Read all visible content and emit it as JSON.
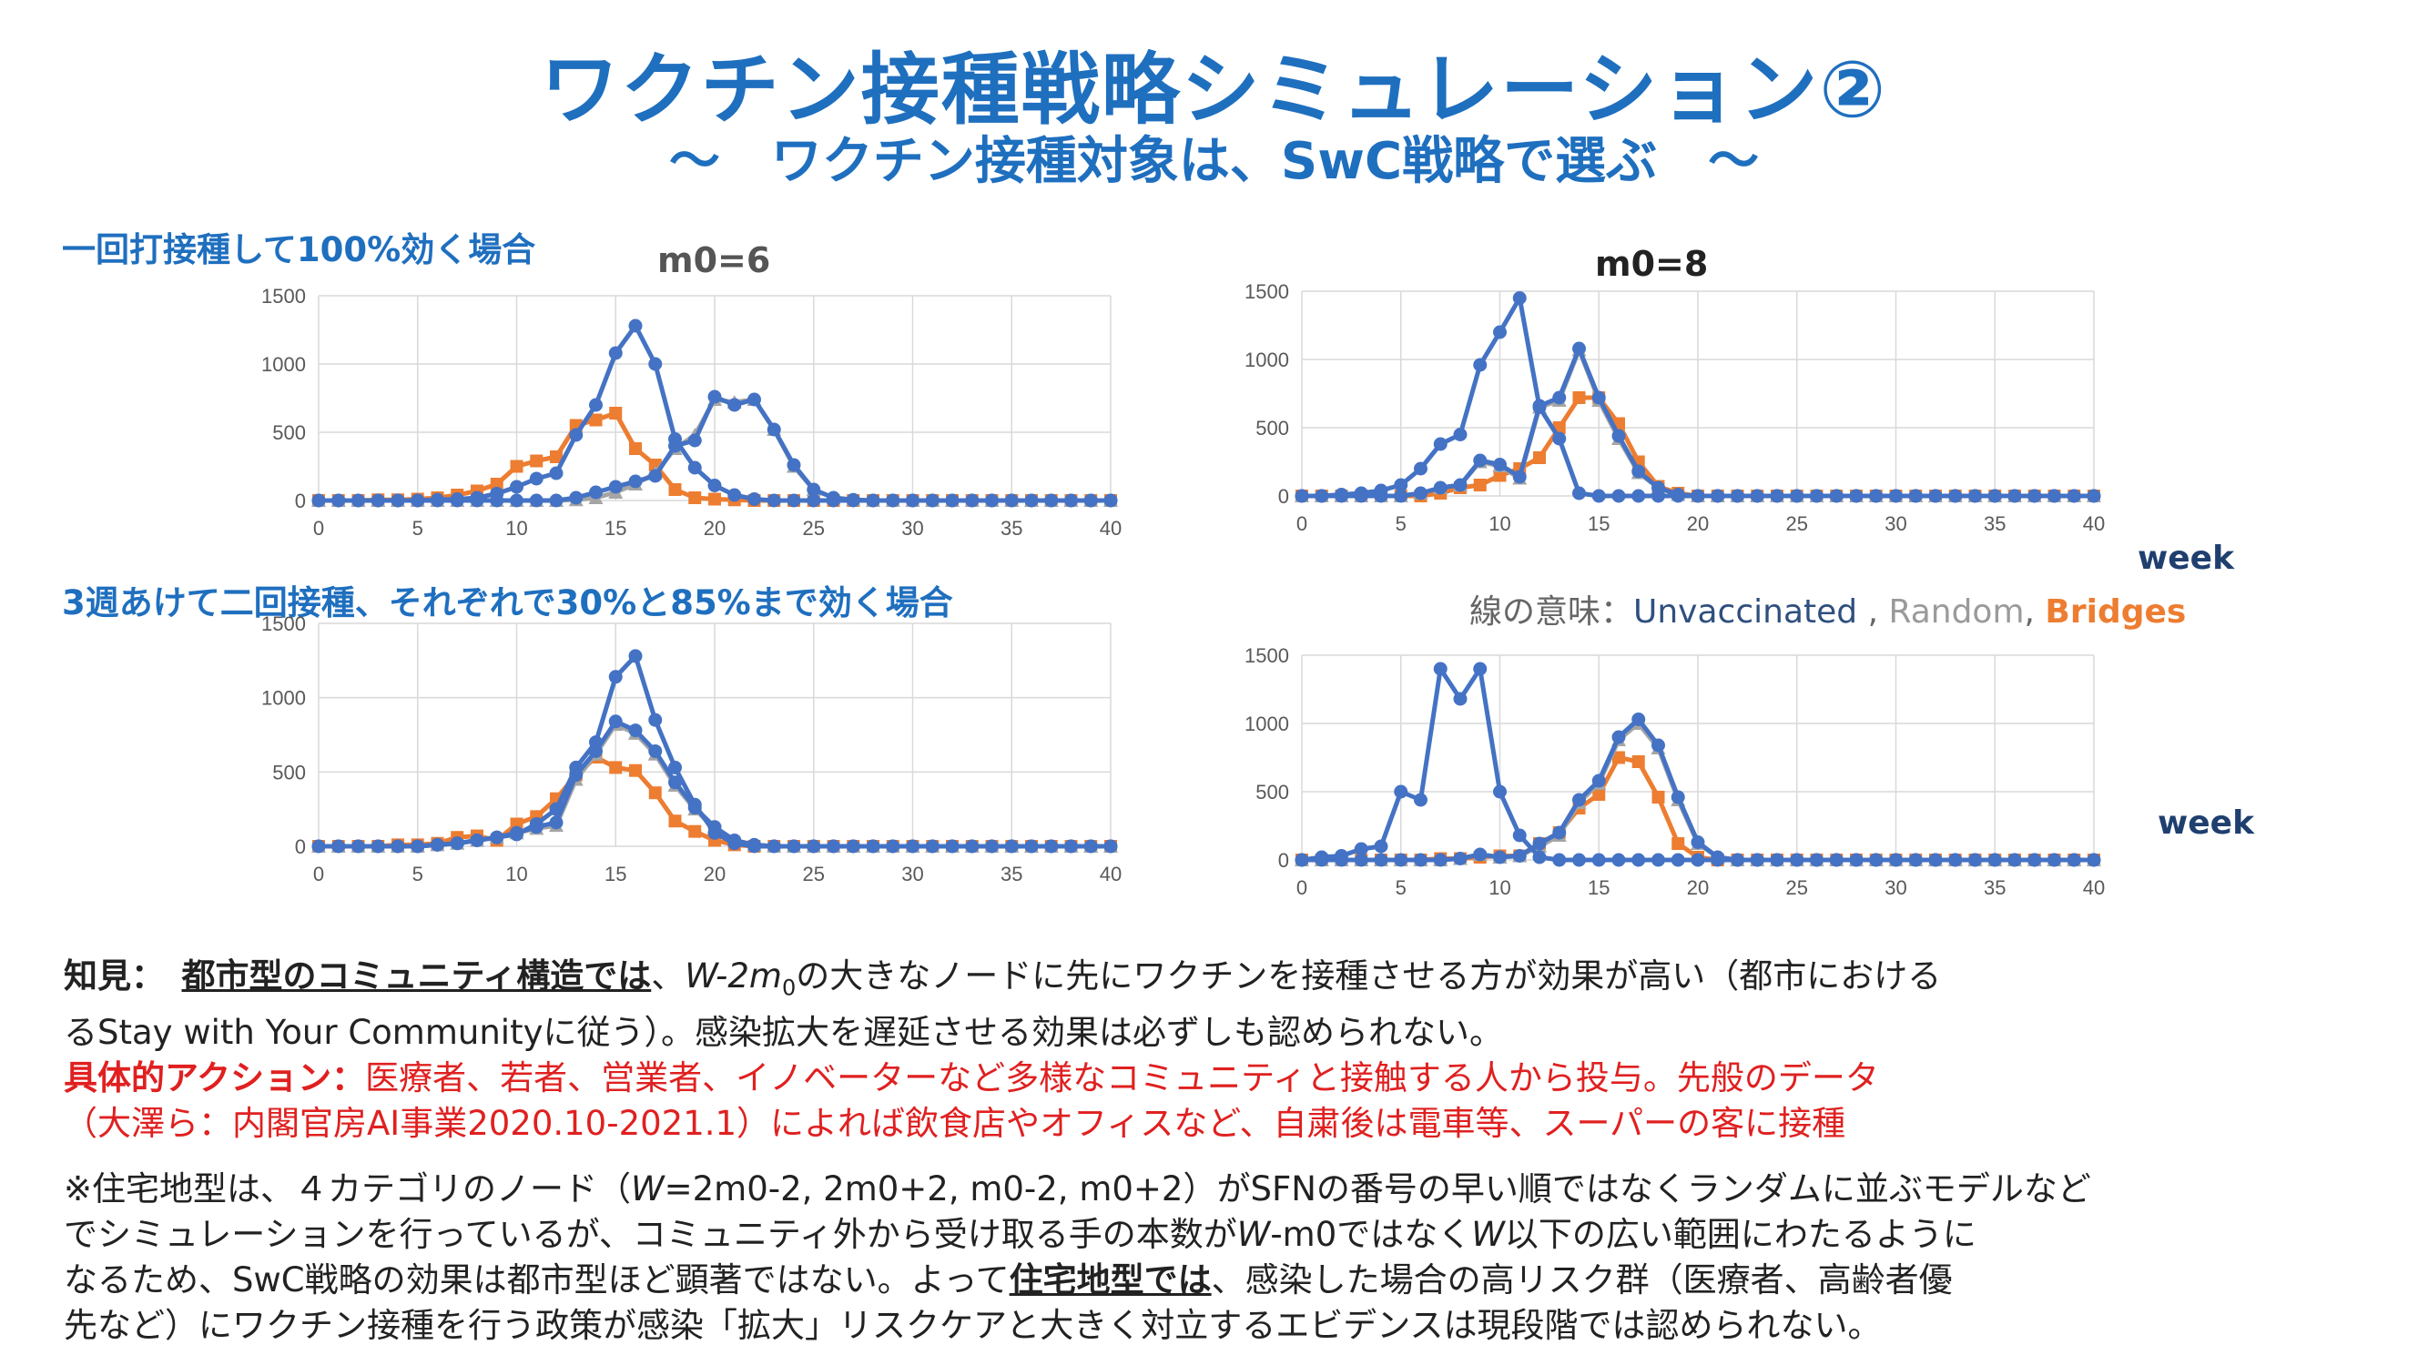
{
  "header": {
    "title": "ワクチン接種戦略シミュレーション②",
    "subtitle": "～　ワクチン接種対象は、SwC戦略で選ぶ　～"
  },
  "sections": {
    "row1_label": "一回打接種して100%効く場合",
    "row2_label": "3週あけて二回接種、それぞれで30%と85%まで効く場合"
  },
  "week_label": "week",
  "legend": {
    "prefix": "線の意味：",
    "unvaccinated": "Unvaccinated",
    "sep1": " , ",
    "random": "Random",
    "sep2": ", ",
    "bridges": "Bridges"
  },
  "colors": {
    "unvaccinated": "#4472c4",
    "random": "#a5a5a5",
    "bridges": "#ed7d31"
  },
  "chart_data": [
    {
      "type": "line",
      "title": "m0=6",
      "xlim": [
        0,
        40
      ],
      "xticks": [
        0,
        5,
        10,
        15,
        20,
        25,
        30,
        35,
        40
      ],
      "ylim": [
        0,
        1500
      ],
      "yticks": [
        0,
        500,
        1000,
        1500
      ],
      "x": [
        0,
        1,
        2,
        3,
        4,
        5,
        6,
        7,
        8,
        9,
        10,
        11,
        12,
        13,
        14,
        15,
        16,
        17,
        18,
        19,
        20,
        21,
        22,
        23,
        24,
        25,
        26,
        27,
        28,
        29,
        30,
        31,
        32,
        33,
        34,
        35,
        36,
        37,
        38,
        39,
        40
      ],
      "series": [
        {
          "name": "Bridges",
          "values": [
            0,
            0,
            0,
            5,
            5,
            10,
            20,
            40,
            70,
            120,
            250,
            290,
            320,
            550,
            590,
            640,
            380,
            260,
            80,
            20,
            10,
            5,
            0,
            0,
            0,
            0,
            0,
            0,
            0,
            0,
            0,
            0,
            0,
            0,
            0,
            0,
            0,
            0,
            0,
            0,
            0
          ]
        },
        {
          "name": "Random",
          "values": [
            0,
            0,
            0,
            0,
            0,
            0,
            0,
            0,
            0,
            0,
            0,
            0,
            0,
            5,
            20,
            60,
            120,
            200,
            380,
            480,
            740,
            720,
            740,
            520,
            250,
            80,
            20,
            5,
            0,
            0,
            0,
            0,
            0,
            0,
            0,
            0,
            0,
            0,
            0,
            0,
            0
          ]
        },
        {
          "name": "Unvaccinated",
          "values": [
            0,
            0,
            0,
            0,
            0,
            0,
            0,
            0,
            0,
            0,
            0,
            0,
            0,
            20,
            60,
            100,
            140,
            180,
            400,
            440,
            760,
            700,
            740,
            520,
            260,
            80,
            20,
            5,
            0,
            0,
            0,
            0,
            0,
            0,
            0,
            0,
            0,
            0,
            0,
            0,
            0
          ]
        },
        {
          "name": "Unvaccinated",
          "values": [
            0,
            0,
            0,
            0,
            0,
            0,
            5,
            10,
            20,
            50,
            100,
            160,
            200,
            480,
            700,
            1080,
            1280,
            1000,
            450,
            240,
            110,
            40,
            10,
            0,
            0,
            0,
            0,
            0,
            0,
            0,
            0,
            0,
            0,
            0,
            0,
            0,
            0,
            0,
            0,
            0,
            0
          ]
        }
      ]
    },
    {
      "type": "line",
      "title": "m0=8",
      "xlim": [
        0,
        40
      ],
      "xticks": [
        0,
        5,
        10,
        15,
        20,
        25,
        30,
        35,
        40
      ],
      "ylim": [
        0,
        1500
      ],
      "yticks": [
        0,
        500,
        1000,
        1500
      ],
      "x": [
        0,
        1,
        2,
        3,
        4,
        5,
        6,
        7,
        8,
        9,
        10,
        11,
        12,
        13,
        14,
        15,
        16,
        17,
        18,
        19,
        20,
        21,
        22,
        23,
        24,
        25,
        26,
        27,
        28,
        29,
        30,
        31,
        32,
        33,
        34,
        35,
        36,
        37,
        38,
        39,
        40
      ],
      "series": [
        {
          "name": "Bridges",
          "values": [
            0,
            0,
            0,
            0,
            0,
            0,
            0,
            20,
            60,
            80,
            150,
            200,
            280,
            500,
            720,
            720,
            530,
            250,
            70,
            20,
            0,
            0,
            0,
            0,
            0,
            0,
            0,
            0,
            0,
            0,
            0,
            0,
            0,
            0,
            0,
            0,
            0,
            0,
            0,
            0,
            0
          ]
        },
        {
          "name": "Random",
          "values": [
            0,
            0,
            0,
            0,
            0,
            0,
            20,
            60,
            80,
            250,
            220,
            130,
            650,
            700,
            1070,
            700,
            420,
            170,
            60,
            10,
            0,
            0,
            0,
            0,
            0,
            0,
            0,
            0,
            0,
            0,
            0,
            0,
            0,
            0,
            0,
            0,
            0,
            0,
            0,
            0,
            0
          ]
        },
        {
          "name": "Unvaccinated",
          "values": [
            0,
            0,
            0,
            0,
            0,
            0,
            20,
            60,
            80,
            260,
            230,
            140,
            660,
            720,
            1080,
            720,
            440,
            180,
            60,
            10,
            0,
            0,
            0,
            0,
            0,
            0,
            0,
            0,
            0,
            0,
            0,
            0,
            0,
            0,
            0,
            0,
            0,
            0,
            0,
            0,
            0
          ]
        },
        {
          "name": "Unvaccinated",
          "values": [
            0,
            0,
            10,
            20,
            40,
            80,
            200,
            380,
            450,
            960,
            1200,
            1450,
            650,
            420,
            20,
            0,
            0,
            0,
            0,
            0,
            0,
            0,
            0,
            0,
            0,
            0,
            0,
            0,
            0,
            0,
            0,
            0,
            0,
            0,
            0,
            0,
            0,
            0,
            0,
            0,
            0
          ]
        }
      ]
    },
    {
      "type": "line",
      "title": "",
      "xlim": [
        0,
        40
      ],
      "xticks": [
        0,
        5,
        10,
        15,
        20,
        25,
        30,
        35,
        40
      ],
      "ylim": [
        0,
        1500
      ],
      "yticks": [
        0,
        500,
        1000,
        1500
      ],
      "x": [
        0,
        1,
        2,
        3,
        4,
        5,
        6,
        7,
        8,
        9,
        10,
        11,
        12,
        13,
        14,
        15,
        16,
        17,
        18,
        19,
        20,
        21,
        22,
        23,
        24,
        25,
        26,
        27,
        28,
        29,
        30,
        31,
        32,
        33,
        34,
        35,
        36,
        37,
        38,
        39,
        40
      ],
      "series": [
        {
          "name": "Bridges",
          "values": [
            0,
            0,
            0,
            0,
            10,
            10,
            20,
            60,
            70,
            40,
            150,
            200,
            320,
            480,
            600,
            530,
            510,
            360,
            170,
            100,
            40,
            10,
            0,
            0,
            0,
            0,
            0,
            0,
            0,
            0,
            0,
            0,
            0,
            0,
            0,
            0,
            0,
            0,
            0,
            0,
            0
          ]
        },
        {
          "name": "Random",
          "values": [
            0,
            0,
            0,
            0,
            0,
            0,
            10,
            20,
            40,
            60,
            90,
            120,
            140,
            450,
            620,
            820,
            760,
            620,
            410,
            250,
            120,
            40,
            10,
            0,
            0,
            0,
            0,
            0,
            0,
            0,
            0,
            0,
            0,
            0,
            0,
            0,
            0,
            0,
            0,
            0,
            0
          ]
        },
        {
          "name": "Unvaccinated",
          "values": [
            0,
            0,
            0,
            0,
            0,
            0,
            10,
            20,
            40,
            60,
            90,
            130,
            160,
            480,
            640,
            840,
            780,
            640,
            430,
            260,
            130,
            40,
            10,
            0,
            0,
            0,
            0,
            0,
            0,
            0,
            0,
            0,
            0,
            0,
            0,
            0,
            0,
            0,
            0,
            0,
            0
          ]
        },
        {
          "name": "Unvaccinated",
          "values": [
            0,
            0,
            0,
            0,
            0,
            0,
            10,
            20,
            40,
            60,
            80,
            150,
            250,
            530,
            700,
            1140,
            1280,
            850,
            530,
            280,
            90,
            20,
            0,
            0,
            0,
            0,
            0,
            0,
            0,
            0,
            0,
            0,
            0,
            0,
            0,
            0,
            0,
            0,
            0,
            0,
            0
          ]
        }
      ]
    },
    {
      "type": "line",
      "title": "",
      "xlim": [
        0,
        40
      ],
      "xticks": [
        0,
        5,
        10,
        15,
        20,
        25,
        30,
        35,
        40
      ],
      "ylim": [
        0,
        1500
      ],
      "yticks": [
        0,
        500,
        1000,
        1500
      ],
      "x": [
        0,
        1,
        2,
        3,
        4,
        5,
        6,
        7,
        8,
        9,
        10,
        11,
        12,
        13,
        14,
        15,
        16,
        17,
        18,
        19,
        20,
        21,
        22,
        23,
        24,
        25,
        26,
        27,
        28,
        29,
        30,
        31,
        32,
        33,
        34,
        35,
        36,
        37,
        38,
        39,
        40
      ],
      "series": [
        {
          "name": "Bridges",
          "values": [
            0,
            0,
            0,
            0,
            0,
            0,
            0,
            10,
            10,
            20,
            30,
            30,
            120,
            200,
            380,
            480,
            750,
            720,
            460,
            120,
            20,
            0,
            0,
            0,
            0,
            0,
            0,
            0,
            0,
            0,
            0,
            0,
            0,
            0,
            0,
            0,
            0,
            0,
            0,
            0,
            0
          ]
        },
        {
          "name": "Random",
          "values": [
            0,
            0,
            0,
            0,
            0,
            0,
            0,
            0,
            10,
            40,
            20,
            30,
            100,
            180,
            420,
            560,
            880,
            1000,
            820,
            440,
            120,
            20,
            0,
            0,
            0,
            0,
            0,
            0,
            0,
            0,
            0,
            0,
            0,
            0,
            0,
            0,
            0,
            0,
            0,
            0,
            0
          ]
        },
        {
          "name": "Unvaccinated",
          "values": [
            0,
            0,
            0,
            0,
            0,
            0,
            0,
            0,
            10,
            40,
            20,
            30,
            120,
            200,
            440,
            580,
            900,
            1030,
            840,
            460,
            130,
            20,
            0,
            0,
            0,
            0,
            0,
            0,
            0,
            0,
            0,
            0,
            0,
            0,
            0,
            0,
            0,
            0,
            0,
            0,
            0
          ]
        },
        {
          "name": "Unvaccinated",
          "values": [
            0,
            20,
            30,
            80,
            100,
            500,
            440,
            1400,
            1180,
            1400,
            500,
            180,
            20,
            0,
            0,
            0,
            0,
            0,
            0,
            0,
            0,
            0,
            0,
            0,
            0,
            0,
            0,
            0,
            0,
            0,
            0,
            0,
            0,
            0,
            0,
            0,
            0,
            0,
            0,
            0,
            0
          ]
        }
      ]
    }
  ],
  "findings": {
    "label": "知見：",
    "underline": "都市型のコミュニティ構造では",
    "w_expr": "W-2",
    "m_sym": "m",
    "m_sub": "0",
    "rest1": "の大きなノードに先にワクチンを接種させる方が効果が高い（都市における",
    "line2": "るStay with Your Communityに従う）。感染拡大を遅延させる効果は必ずしも認められない。",
    "action_label": "具体的アクション：",
    "action_text": "医療者、若者、営業者、イノベーターなど多様なコミュニティと接触する人から投与。先般のデータ",
    "action_line2": "（大澤ら：内閣官房AI事業2020.10-2021.1）によれば飲食店やオフィスなど、自粛後は電車等、スーパーの客に接種"
  },
  "note": {
    "p1": "※住宅地型は、４カテゴリのノード（",
    "w1": "W",
    "p2": "=2m0-2, 2m0+2, m0-2, m0+2）がSFNの番号の早い順ではなくランダムに並ぶモデルなど",
    "line2a": "でシミュレーションを行っているが、コミュニティ外から受け取る手の本数が",
    "w2": "W",
    "line2b": "-m0ではなく",
    "w3": "W",
    "line2c": "以下の広い範囲にわたるように",
    "line3a": "なるため、SwC戦略の効果は都市型ほど顕著ではない。よって",
    "line3u": "住宅地型では",
    "line3b": "、感染した場合の高リスク群（医療者、高齢者優",
    "line4": "先など）にワクチン接種を行う政策が感染「拡大」リスクケアと大きく対立するエビデンスは現段階では認められない。"
  }
}
